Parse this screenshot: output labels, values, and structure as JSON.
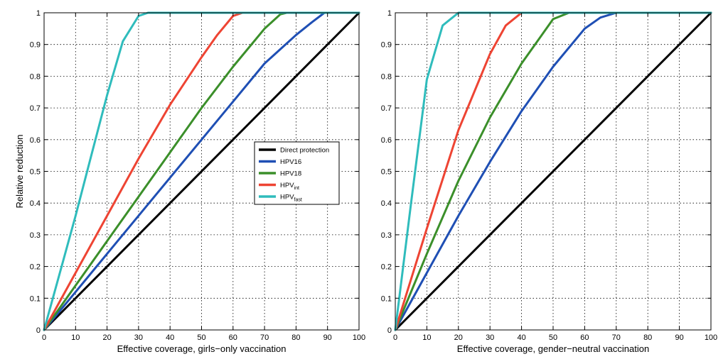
{
  "chart_data": [
    {
      "type": "line",
      "panel": "left",
      "xlabel": "Effective coverage, girls−only vaccination",
      "ylabel": "Relative reduction",
      "xlim": [
        0,
        100
      ],
      "ylim": [
        0,
        1
      ],
      "xticks": [
        0,
        10,
        20,
        30,
        40,
        50,
        60,
        70,
        80,
        90,
        100
      ],
      "yticks": [
        0,
        0.1,
        0.2,
        0.3,
        0.4,
        0.5,
        0.6,
        0.7,
        0.8,
        0.9,
        1
      ],
      "grid": true,
      "legend": {
        "placement": "right-center",
        "entries": [
          {
            "name": "Direct protection",
            "sub": ""
          },
          {
            "name": "HPV16",
            "sub": ""
          },
          {
            "name": "HPV18",
            "sub": ""
          },
          {
            "name": "HPV",
            "sub": "int"
          },
          {
            "name": "HPV",
            "sub": "fast"
          }
        ]
      },
      "series": [
        {
          "name": "Direct protection",
          "color": "#000000",
          "x": [
            0,
            100
          ],
          "y": [
            0,
            1
          ]
        },
        {
          "name": "HPV16",
          "color": "#1f4fb4",
          "x": [
            0,
            10,
            20,
            30,
            40,
            50,
            60,
            70,
            80,
            85,
            89,
            100
          ],
          "y": [
            0,
            0.12,
            0.24,
            0.36,
            0.48,
            0.6,
            0.72,
            0.84,
            0.93,
            0.97,
            1,
            1
          ]
        },
        {
          "name": "HPV18",
          "color": "#3b8f2a",
          "x": [
            0,
            10,
            20,
            30,
            40,
            50,
            60,
            70,
            75,
            77,
            100
          ],
          "y": [
            0,
            0.14,
            0.28,
            0.42,
            0.56,
            0.7,
            0.83,
            0.95,
            0.995,
            1,
            1
          ]
        },
        {
          "name": "HPVint",
          "color": "#ee4433",
          "x": [
            0,
            10,
            20,
            30,
            40,
            50,
            55,
            60,
            63,
            100
          ],
          "y": [
            0,
            0.18,
            0.36,
            0.54,
            0.71,
            0.86,
            0.93,
            0.99,
            1,
            1
          ]
        },
        {
          "name": "HPVfast",
          "color": "#2fbcbc",
          "x": [
            0,
            5,
            10,
            15,
            20,
            25,
            30,
            33,
            100
          ],
          "y": [
            0,
            0.18,
            0.36,
            0.55,
            0.74,
            0.91,
            0.99,
            1,
            1
          ]
        }
      ]
    },
    {
      "type": "line",
      "panel": "right",
      "xlabel": "Effective coverage, gender−neutral vaccination",
      "ylabel": "",
      "xlim": [
        0,
        100
      ],
      "ylim": [
        0,
        1
      ],
      "xticks": [
        0,
        10,
        20,
        30,
        40,
        50,
        60,
        70,
        80,
        90,
        100
      ],
      "yticks": [
        0,
        0.1,
        0.2,
        0.3,
        0.4,
        0.5,
        0.6,
        0.7,
        0.8,
        0.9,
        1
      ],
      "grid": true,
      "series": [
        {
          "name": "Direct protection",
          "color": "#000000",
          "x": [
            0,
            100
          ],
          "y": [
            0,
            1
          ]
        },
        {
          "name": "HPV16",
          "color": "#1f4fb4",
          "x": [
            0,
            10,
            20,
            30,
            40,
            50,
            60,
            65,
            70,
            100
          ],
          "y": [
            0,
            0.18,
            0.36,
            0.53,
            0.69,
            0.83,
            0.95,
            0.985,
            1,
            1
          ]
        },
        {
          "name": "HPV18",
          "color": "#3b8f2a",
          "x": [
            0,
            10,
            20,
            30,
            40,
            50,
            55,
            100
          ],
          "y": [
            0,
            0.24,
            0.47,
            0.67,
            0.84,
            0.98,
            1,
            1
          ]
        },
        {
          "name": "HPVint",
          "color": "#ee4433",
          "x": [
            0,
            10,
            20,
            30,
            35,
            40,
            100
          ],
          "y": [
            0,
            0.32,
            0.63,
            0.87,
            0.96,
            1,
            1
          ]
        },
        {
          "name": "HPVfast",
          "color": "#2fbcbc",
          "x": [
            0,
            5,
            10,
            15,
            20,
            100
          ],
          "y": [
            0,
            0.4,
            0.79,
            0.96,
            1,
            1
          ]
        }
      ]
    }
  ]
}
